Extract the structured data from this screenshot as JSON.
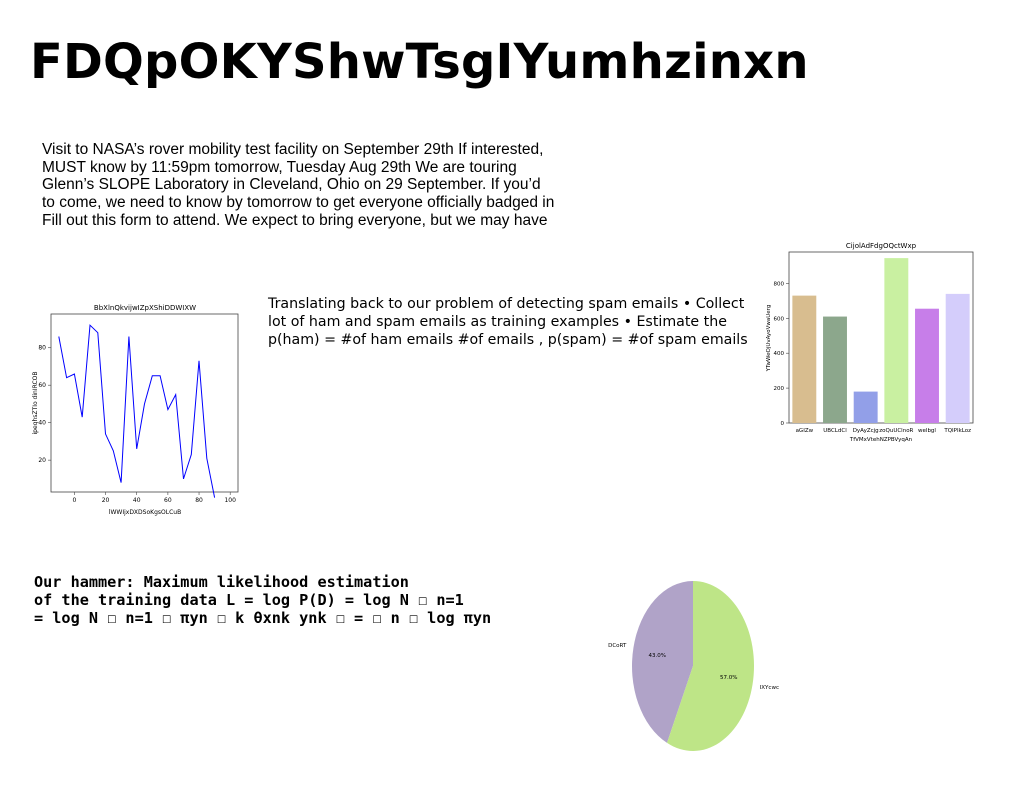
{
  "title": "FDQpOKYShwTsgIYumhzinxn",
  "paragraph1": [
    "Visit to NASA’s rover mobility test facility on September 29th If interested,",
    "MUST know by 11:59pm tomorrow, Tuesday Aug 29th We are touring",
    "Glenn’s SLOPE Laboratory in Cleveland, Ohio on 29 September. If you’d",
    "to come, we need to know by tomorrow to get everyone officially badged in",
    "Fill out this form to attend. We expect to bring everyone, but we may have"
  ],
  "paragraph2": [
    "Translating back to our problem of detecting spam emails • Collect",
    "lot of ham and spam emails as training examples • Estimate the",
    "p(ham) = #of ham emails #of emails , p(spam) = #of spam emails"
  ],
  "paragraph3": [
    "Our hammer: Maximum likelihood estimation",
    "of the training data L = log P(D) = log N ☐ n=1",
    "= log N ☐ n=1 ☐ πyn ☐ k θxnk ynk ☐ = ☐ n ☐ log πyn"
  ],
  "chart_data": [
    {
      "type": "line",
      "title": "BbXlnQkvijwIZpXShiDDWIXW",
      "xlabel": "lWWIjxDXDSoKgsOLCuB",
      "ylabel": "ipeqhsZTIo dinIRCOB",
      "xlim": [
        -15,
        105
      ],
      "ylim": [
        3,
        98
      ],
      "xticks": [
        0,
        20,
        40,
        60,
        80,
        100
      ],
      "yticks": [
        20,
        40,
        60,
        80
      ],
      "color": "#0000ff",
      "x": [
        -10,
        -5,
        0,
        5,
        10,
        15,
        20,
        25,
        30,
        35,
        40,
        45,
        50,
        55,
        60,
        65,
        70,
        75,
        80,
        85,
        90,
        95,
        100
      ],
      "y": [
        86,
        64,
        66,
        43,
        92,
        88,
        34,
        25,
        8,
        86,
        26,
        50,
        65,
        65,
        47,
        55,
        10,
        23,
        73,
        21,
        0,
        0,
        0
      ]
    },
    {
      "type": "bar",
      "title": "CijolAdFdgOQctWxp",
      "xlabel": "TfVMxVtehNZPBVyqAn",
      "ylabel": "YTwWeOjUvAyoVwaUerg",
      "ylim": [
        0,
        980
      ],
      "yticks": [
        0,
        200,
        400,
        600,
        800
      ],
      "categories": [
        "aGIZw",
        "UBCLdCl",
        "DyAyZcjg",
        "zoQuUClnoR",
        "welbgl",
        "TQIPIkLoz"
      ],
      "values": [
        730,
        610,
        180,
        945,
        655,
        740
      ],
      "colors": [
        "#d8bd8f",
        "#8ca78c",
        "#929fe8",
        "#c9f0a1",
        "#c77ee9",
        "#d4cdfb"
      ]
    },
    {
      "type": "pie",
      "labels": [
        "DCoRT",
        "IXYcwc"
      ],
      "values": [
        43.0,
        57.0
      ],
      "value_labels": [
        "43.0%",
        "57.0%"
      ],
      "colors": [
        "#b0a3c8",
        "#bee587"
      ]
    }
  ]
}
